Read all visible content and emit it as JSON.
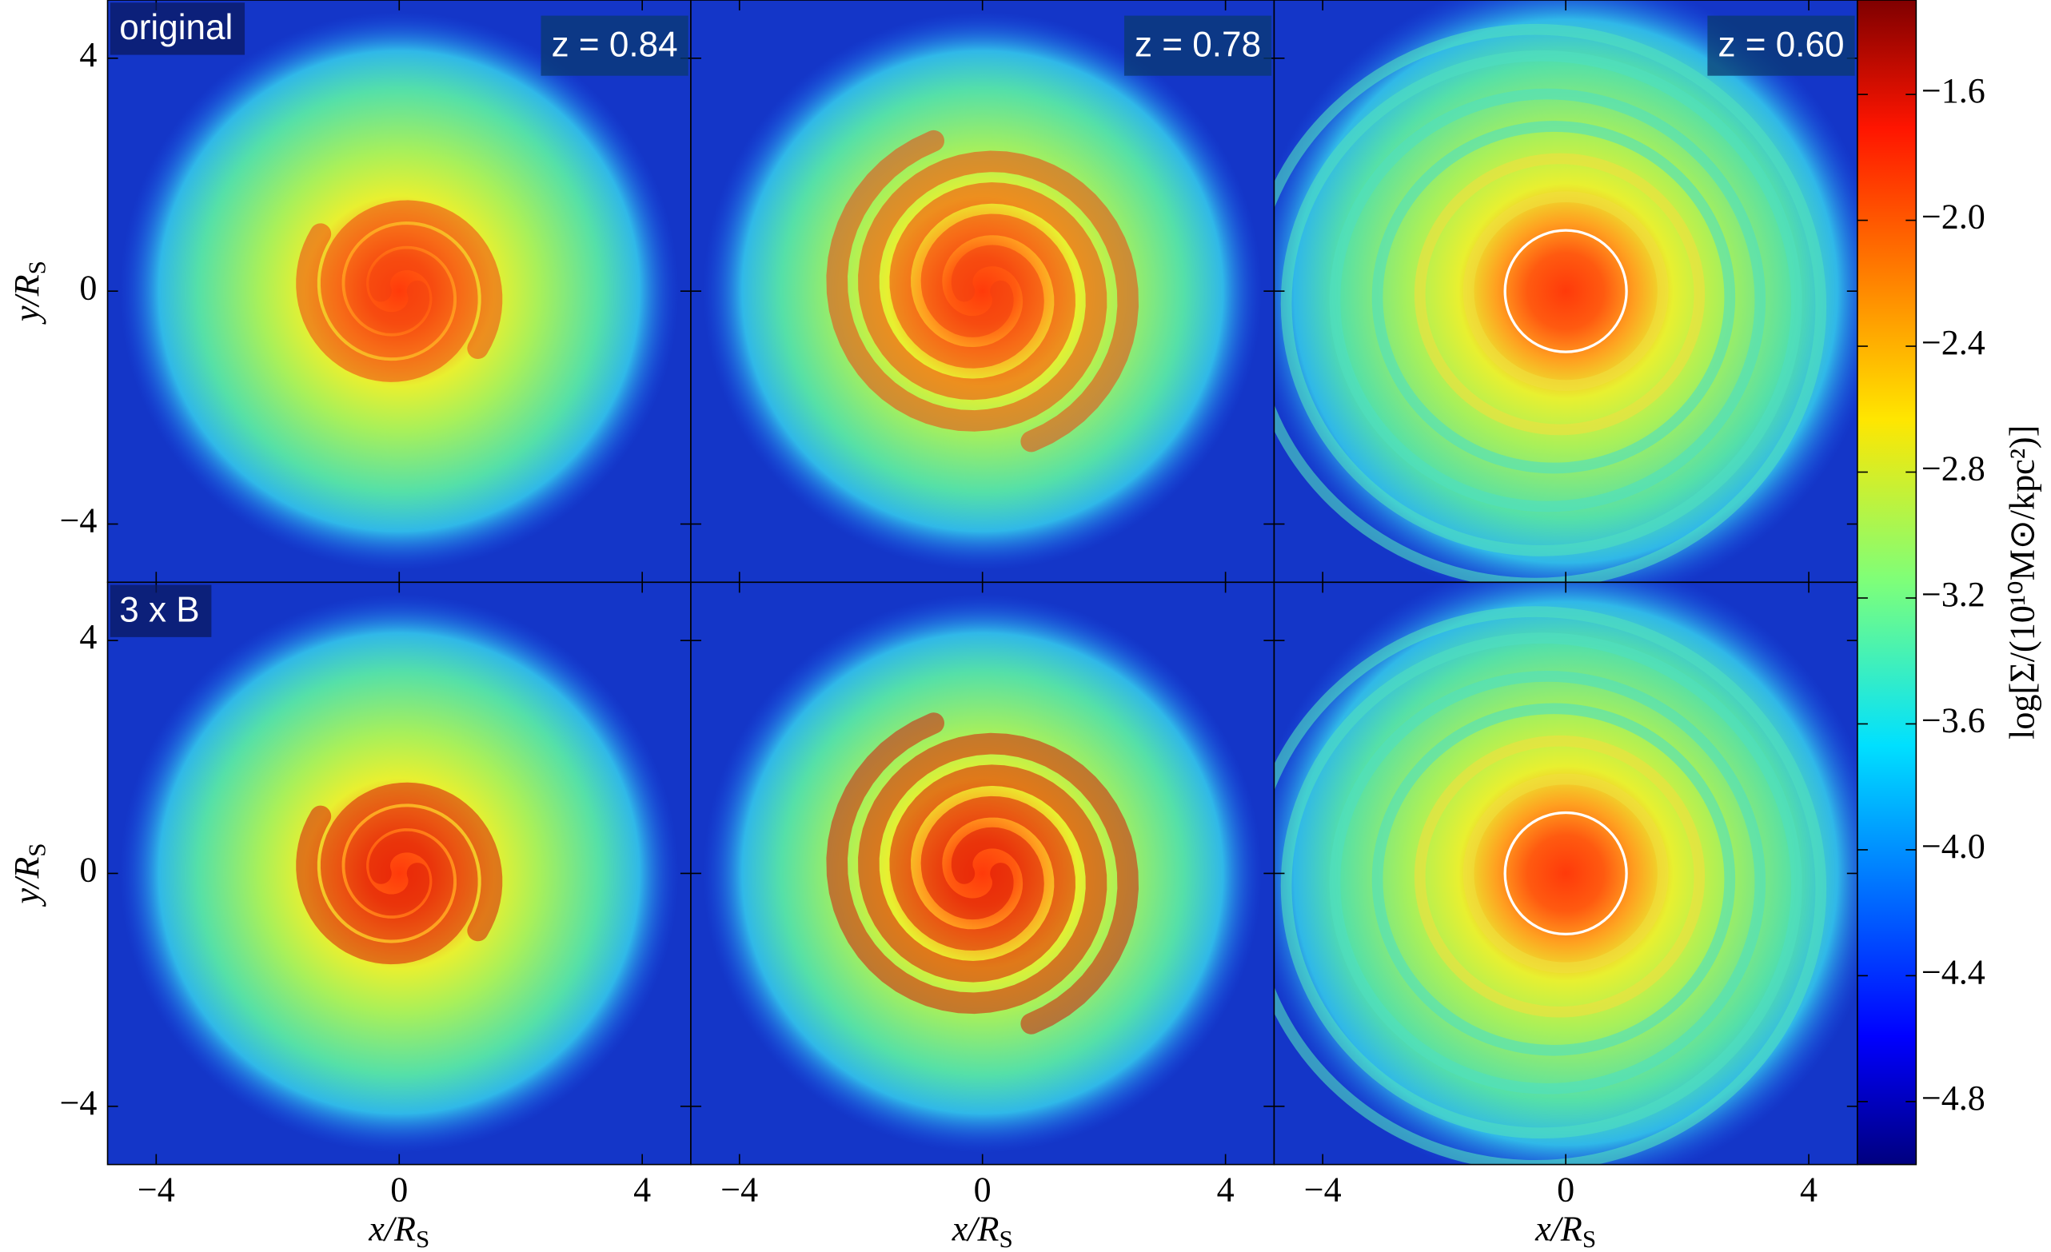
{
  "chart_data": {
    "type": "heatmap-grid",
    "rows": 2,
    "cols": 3,
    "xlim": [
      -4.8,
      4.8
    ],
    "ylim": [
      -5,
      5
    ],
    "xticks": [
      {
        "value": -4,
        "label": "−4"
      },
      0,
      4
    ],
    "yticks": [
      {
        "value": -4,
        "label": "−4"
      },
      0,
      4
    ],
    "xlabel": {
      "main": "x/R",
      "sub": "S"
    },
    "ylabel": {
      "main": "y/R",
      "sub": "S"
    },
    "row_labels": [
      "original",
      "3 x B"
    ],
    "column_labels": [
      "z = 0.84",
      "z = 0.78",
      "z = 0.60"
    ],
    "colorbar": {
      "label": "log[Σ/(10¹⁰M⊙/kpc²)]",
      "clim": [
        -5.0,
        -1.3
      ],
      "ticks": [
        {
          "value": -4.8,
          "label": "−4.8"
        },
        {
          "value": -4.4,
          "label": "−4.4"
        },
        {
          "value": -4.0,
          "label": "−4.0"
        },
        {
          "value": -3.6,
          "label": "−3.6"
        },
        {
          "value": -3.2,
          "label": "−3.2"
        },
        {
          "value": -2.8,
          "label": "−2.8"
        },
        {
          "value": -2.4,
          "label": "−2.4"
        },
        {
          "value": -2.0,
          "label": "−2.0"
        },
        {
          "value": -1.6,
          "label": "−1.6"
        }
      ]
    }
  }
}
